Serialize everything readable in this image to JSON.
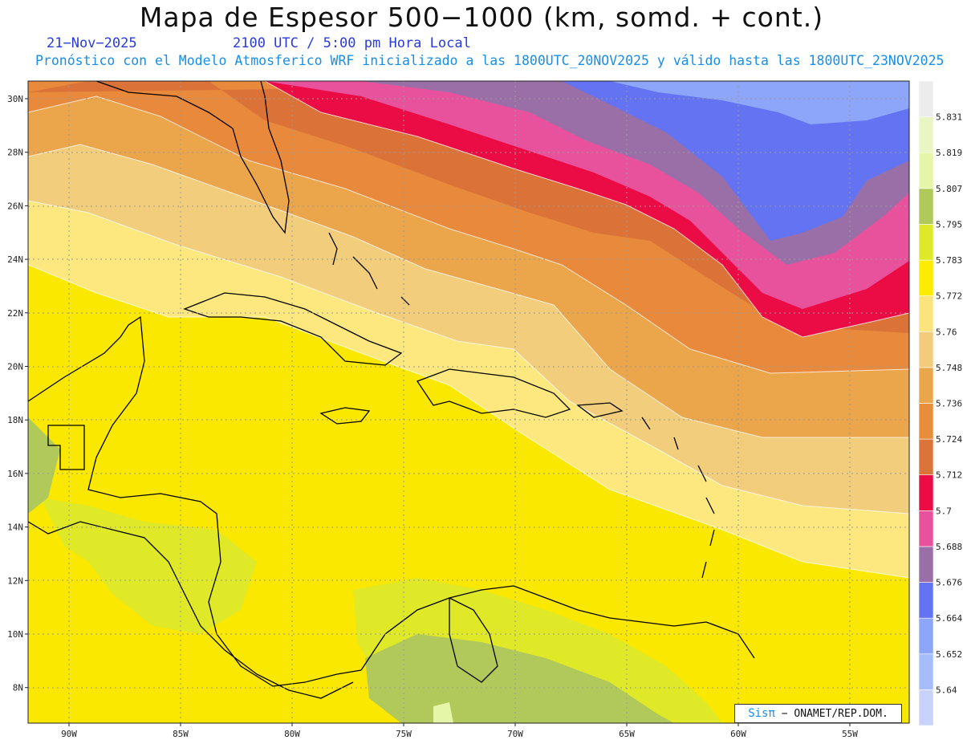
{
  "header": {
    "title": "Mapa de Espesor 500−1000 (km, somd. + cont.)",
    "date": "21−Nov−2025",
    "time": "2100 UTC / 5:00 pm Hora Local",
    "forecast_info": "Pronóstico con el Modelo Atmosferico WRF inicializado a las 1800UTC_20NOV2025 y válido hasta las  1800UTC_23NOV2025"
  },
  "axes": {
    "lat_labels": [
      "30N",
      "28N",
      "26N",
      "24N",
      "22N",
      "20N",
      "18N",
      "16N",
      "14N",
      "12N",
      "10N",
      "8N"
    ],
    "lon_labels": [
      "90W",
      "85W",
      "80W",
      "75W",
      "70W",
      "65W",
      "60W",
      "55W"
    ]
  },
  "colorbar": {
    "labels": [
      "5.831",
      "5.819",
      "5.807",
      "5.795",
      "5.783",
      "5.772",
      "5.76",
      "5.748",
      "5.736",
      "5.724",
      "5.712",
      "5.7",
      "5.688",
      "5.676",
      "5.664",
      "5.652",
      "5.64"
    ],
    "colors": [
      "#c8d2fb",
      "#a5bdfa",
      "#8ea6f9",
      "#6473f2",
      "#9a6fa8",
      "#e8529c",
      "#ec0c45",
      "#db7439",
      "#e88d3b",
      "#eaa64b",
      "#f2cc7c",
      "#fbe47e",
      "#fbec00",
      "#dfe928",
      "#b1c95b",
      "#e6f6a8",
      "#eaf5c4",
      "#ececec"
    ]
  },
  "credit": {
    "sis": "Sisπ",
    "text": "− ONAMET/REP.DOM."
  }
}
